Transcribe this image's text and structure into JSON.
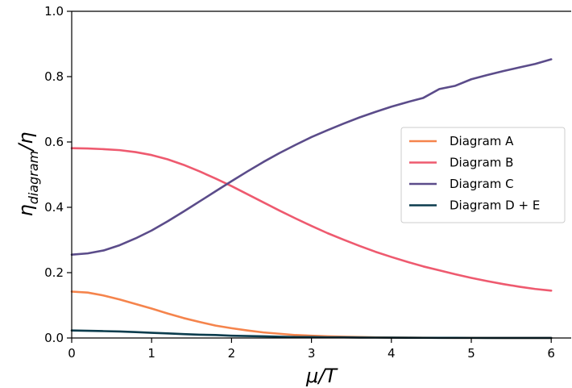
{
  "chart_data": {
    "type": "line",
    "xlabel": "μ/T",
    "ylabel_main": "η",
    "ylabel_sub": "diagram",
    "ylabel_tail": "/η",
    "xlim": [
      0,
      6.25
    ],
    "ylim": [
      0.0,
      1.0
    ],
    "x_ticks": [
      0,
      1,
      2,
      3,
      4,
      5,
      6
    ],
    "x_tick_labels": [
      "0",
      "1",
      "2",
      "3",
      "4",
      "5",
      "6"
    ],
    "y_ticks": [
      0.0,
      0.2,
      0.4,
      0.6,
      0.8,
      1.0
    ],
    "y_tick_labels": [
      "0.0",
      "0.2",
      "0.4",
      "0.6",
      "0.8",
      "1.0"
    ],
    "grid": false,
    "legend_position": "center-right",
    "x": [
      0,
      0.2,
      0.4,
      0.6,
      0.8,
      1.0,
      1.2,
      1.4,
      1.6,
      1.8,
      2.0,
      2.2,
      2.4,
      2.6,
      2.8,
      3.0,
      3.2,
      3.4,
      3.6,
      3.8,
      4.0,
      4.2,
      4.4,
      4.6,
      4.8,
      5.0,
      5.2,
      5.4,
      5.6,
      5.8,
      6.0
    ],
    "series": [
      {
        "name": "Diagram A",
        "color": "#f5844c",
        "values": [
          0.142,
          0.139,
          0.13,
          0.118,
          0.104,
          0.09,
          0.075,
          0.061,
          0.049,
          0.038,
          0.03,
          0.023,
          0.017,
          0.013,
          0.009,
          0.007,
          0.005,
          0.004,
          0.003,
          0.002,
          0.0015,
          0.001,
          0.0008,
          0.0006,
          0.0005,
          0.0004,
          0.0003,
          0.0002,
          0.0002,
          0.0001,
          0.0001
        ]
      },
      {
        "name": "Diagram B",
        "color": "#ee5a6f",
        "values": [
          0.581,
          0.58,
          0.578,
          0.575,
          0.569,
          0.56,
          0.547,
          0.53,
          0.51,
          0.488,
          0.465,
          0.44,
          0.415,
          0.39,
          0.366,
          0.343,
          0.321,
          0.301,
          0.282,
          0.264,
          0.248,
          0.233,
          0.219,
          0.207,
          0.195,
          0.184,
          0.174,
          0.165,
          0.157,
          0.15,
          0.145
        ]
      },
      {
        "name": "Diagram C",
        "color": "#5b4c8a",
        "values": [
          0.255,
          0.259,
          0.268,
          0.284,
          0.305,
          0.329,
          0.357,
          0.387,
          0.418,
          0.449,
          0.48,
          0.51,
          0.539,
          0.566,
          0.591,
          0.615,
          0.636,
          0.656,
          0.675,
          0.692,
          0.708,
          0.722,
          0.735,
          0.762,
          0.772,
          0.792,
          0.805,
          0.817,
          0.828,
          0.839,
          0.853
        ]
      },
      {
        "name": "Diagram D + E",
        "color": "#0b3c4d",
        "values": [
          0.023,
          0.022,
          0.021,
          0.02,
          0.018,
          0.016,
          0.014,
          0.012,
          0.01,
          0.009,
          0.007,
          0.006,
          0.005,
          0.004,
          0.003,
          0.003,
          0.002,
          0.002,
          0.0015,
          0.0012,
          0.001,
          0.0008,
          0.0006,
          0.0005,
          0.0004,
          0.0003,
          0.0002,
          0.0002,
          0.0001,
          0.0001,
          0.0001
        ]
      }
    ]
  }
}
